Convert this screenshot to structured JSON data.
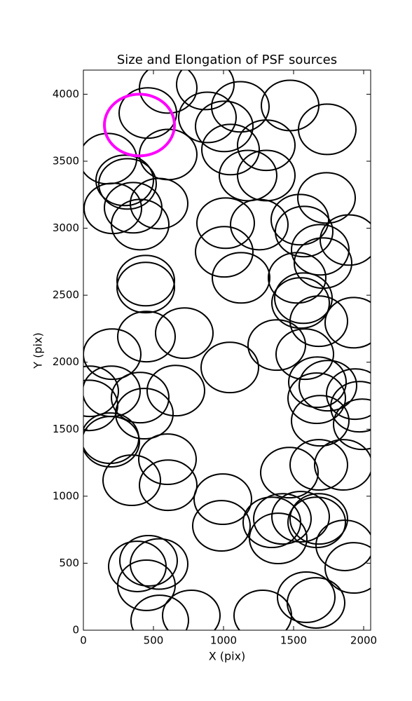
{
  "chart_data": {
    "type": "ellipse-scatter",
    "title": "Size and Elongation of PSF sources",
    "x_label": "X (pix)",
    "y_label": "Y (pix)",
    "xlim": [
      0,
      2050
    ],
    "ylim": [
      0,
      4180
    ],
    "xticks": [
      0,
      500,
      1000,
      1500,
      2000
    ],
    "yticks": [
      0,
      500,
      1000,
      1500,
      2000,
      2500,
      3000,
      3500,
      4000
    ],
    "color": "#000000",
    "ellipse_width": 410,
    "ellipse_height": 376,
    "x": [
      460,
      605,
      870,
      1120,
      1475,
      1740,
      885,
      1005,
      605,
      175,
      295,
      315,
      210,
      355,
      540,
      405,
      1050,
      1305,
      1175,
      1305,
      1015,
      1255,
      1735,
      1895,
      1545,
      1575,
      1690,
      1710,
      1005,
      1125,
      1525,
      445,
      445,
      1570,
      1550,
      1680,
      1930,
      205,
      450,
      720,
      1045,
      1380,
      1580,
      45,
      200,
      405,
      660,
      1670,
      1745,
      1665,
      1690,
      1940,
      1970,
      1990,
      40,
      435,
      190,
      195,
      600,
      345,
      605,
      1470,
      1680,
      1855,
      995,
      985,
      1345,
      1390,
      1420,
      1550,
      1680,
      1665,
      1865,
      1930,
      385,
      465,
      540,
      450,
      545,
      770,
      1280,
      1590,
      1660
    ],
    "y": [
      3860,
      4047,
      4073,
      3906,
      3916,
      3738,
      3827,
      3760,
      3550,
      3519,
      3357,
      3331,
      3148,
      3153,
      3184,
      3027,
      3587,
      3619,
      3393,
      3393,
      3038,
      3027,
      3226,
      2912,
      3064,
      2975,
      2839,
      2740,
      2824,
      2630,
      2630,
      2609,
      2557,
      2478,
      2442,
      2306,
      2295,
      2060,
      2191,
      2217,
      1961,
      2128,
      2060,
      1783,
      1783,
      1736,
      1788,
      1851,
      1825,
      1731,
      1563,
      1762,
      1668,
      1537,
      1678,
      1616,
      1433,
      1407,
      1276,
      1119,
      1082,
      1176,
      1234,
      1234,
      978,
      779,
      805,
      685,
      831,
      847,
      831,
      805,
      633,
      465,
      476,
      518,
      494,
      335,
      73,
      110,
      110,
      246,
      204
    ],
    "highlight": {
      "x": 400,
      "y": 3770,
      "width": 500,
      "height": 460,
      "color": "#ff00ff"
    }
  }
}
